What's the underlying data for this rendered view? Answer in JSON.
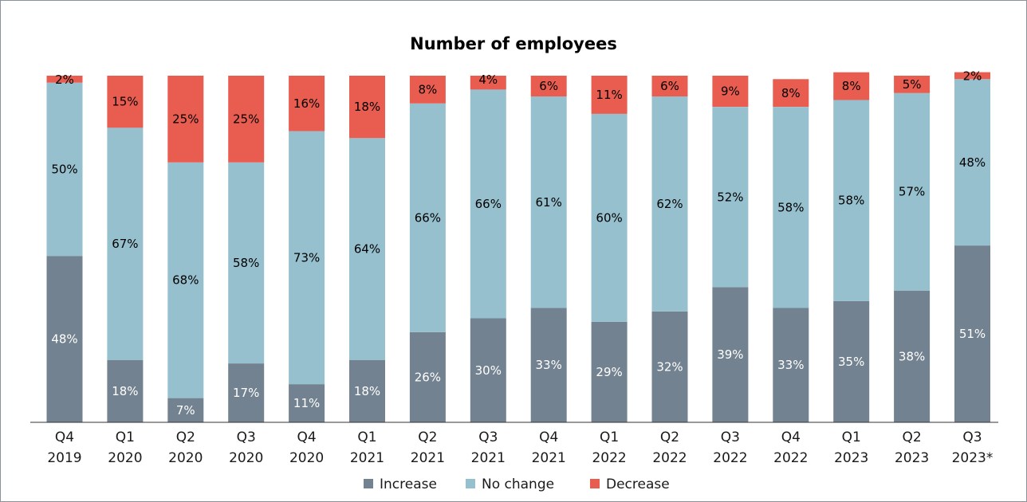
{
  "chart_data": {
    "type": "bar",
    "stacked": true,
    "percent": true,
    "title": "Number of employees",
    "categories": [
      [
        "Q4",
        "2019"
      ],
      [
        "Q1",
        "2020"
      ],
      [
        "Q2",
        "2020"
      ],
      [
        "Q3",
        "2020"
      ],
      [
        "Q4",
        "2020"
      ],
      [
        "Q1",
        "2021"
      ],
      [
        "Q2",
        "2021"
      ],
      [
        "Q3",
        "2021"
      ],
      [
        "Q4",
        "2021"
      ],
      [
        "Q1",
        "2022"
      ],
      [
        "Q2",
        "2022"
      ],
      [
        "Q3",
        "2022"
      ],
      [
        "Q4",
        "2022"
      ],
      [
        "Q1",
        "2023"
      ],
      [
        "Q2",
        "2023"
      ],
      [
        "Q3",
        "2023*"
      ]
    ],
    "series": [
      {
        "name": "Increase",
        "color": "#738290",
        "label_color": "#ffffff",
        "values": [
          48,
          18,
          7,
          17,
          11,
          18,
          26,
          30,
          33,
          29,
          32,
          39,
          33,
          35,
          38,
          51
        ]
      },
      {
        "name": "No change",
        "color": "#96c0ce",
        "label_color": "#000000",
        "values": [
          50,
          67,
          68,
          58,
          73,
          64,
          66,
          66,
          61,
          60,
          62,
          52,
          58,
          58,
          57,
          48
        ]
      },
      {
        "name": "Decrease",
        "color": "#e85d50",
        "label_color": "#000000",
        "values": [
          2,
          15,
          25,
          25,
          16,
          18,
          8,
          4,
          6,
          11,
          6,
          9,
          8,
          8,
          5,
          2
        ]
      }
    ],
    "ylim": [
      0,
      100
    ],
    "legend_position": "bottom",
    "grid": false
  }
}
